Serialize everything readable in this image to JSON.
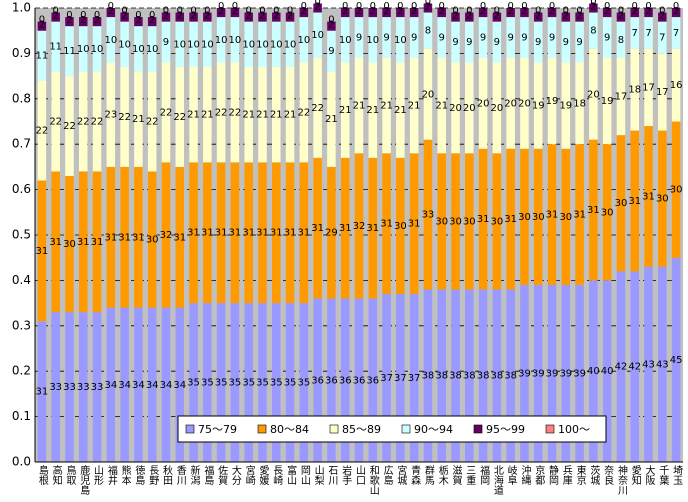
{
  "chart_data": {
    "type": "stacked_bar",
    "categories": [
      "島根",
      "高知",
      "鳥取",
      "鹿児島",
      "山形",
      "福井",
      "熊本",
      "徳島",
      "長野",
      "秋田",
      "香川",
      "新潟",
      "福島",
      "佐賀",
      "大分",
      "宮崎",
      "愛媛",
      "長崎",
      "富山",
      "岡山",
      "山梨",
      "石川",
      "岩手",
      "山口",
      "和歌山",
      "広島",
      "宮城",
      "青森",
      "群馬",
      "栃木",
      "滋賀",
      "三重",
      "福岡",
      "北海道",
      "岐阜",
      "沖縄",
      "京都",
      "静岡",
      "兵庫",
      "東京",
      "茨城",
      "奈良",
      "神奈川",
      "愛知",
      "大阪",
      "千葉",
      "埼玉"
    ],
    "ylim": [
      0,
      1.0
    ],
    "yticks": [
      {
        "value": 0,
        "label": "0.0"
      },
      0.1,
      0.2,
      0.3,
      0.4,
      0.5,
      0.6,
      0.7,
      0.8,
      0.9,
      {
        "value": 1.0,
        "label": "1.0"
      }
    ],
    "grid": true,
    "legend": "bottom",
    "series": [
      {
        "name": "75～79",
        "color": "#9999ff",
        "values": [
          0.31,
          0.33,
          0.33,
          0.33,
          0.33,
          0.34,
          0.34,
          0.34,
          0.34,
          0.34,
          0.34,
          0.35,
          0.35,
          0.35,
          0.35,
          0.35,
          0.35,
          0.35,
          0.35,
          0.35,
          0.36,
          0.36,
          0.36,
          0.36,
          0.36,
          0.37,
          0.37,
          0.37,
          0.38,
          0.38,
          0.38,
          0.38,
          0.38,
          0.38,
          0.38,
          0.39,
          0.39,
          0.39,
          0.39,
          0.39,
          0.4,
          0.4,
          0.42,
          0.42,
          0.43,
          0.43,
          0.45
        ],
        "value_labels": [
          "31",
          "33",
          "33",
          "33",
          "33",
          "34",
          "34",
          "34",
          "34",
          "34",
          "34",
          "35",
          "35",
          "35",
          "35",
          "35",
          "35",
          "35",
          "35",
          "35",
          "36",
          "36",
          "36",
          "36",
          "36",
          "37",
          "37",
          "37",
          "38",
          "38",
          "38",
          "38",
          "38",
          "38",
          "38",
          "39",
          "39",
          "39",
          "39",
          "39",
          "40",
          "40",
          "42",
          "42",
          "43",
          "43",
          "45"
        ]
      },
      {
        "name": "80～84",
        "color": "#ff9900",
        "values": [
          0.31,
          0.31,
          0.3,
          0.31,
          0.31,
          0.31,
          0.31,
          0.31,
          0.3,
          0.32,
          0.31,
          0.31,
          0.31,
          0.31,
          0.31,
          0.31,
          0.31,
          0.31,
          0.31,
          0.31,
          0.31,
          0.29,
          0.31,
          0.32,
          0.31,
          0.31,
          0.3,
          0.31,
          0.33,
          0.3,
          0.3,
          0.3,
          0.31,
          0.3,
          0.31,
          0.3,
          0.3,
          0.31,
          0.3,
          0.31,
          0.31,
          0.3,
          0.3,
          0.31,
          0.31,
          0.3,
          0.3
        ],
        "value_labels": [
          "31",
          "31",
          "30",
          "31",
          "31",
          "31",
          "31",
          "31",
          "30",
          "32",
          "31",
          "31",
          "31",
          "31",
          "31",
          "31",
          "31",
          "31",
          "31",
          "31",
          "31",
          "29",
          "31",
          "32",
          "31",
          "31",
          "30",
          "31",
          "33",
          "30",
          "30",
          "30",
          "31",
          "30",
          "31",
          "30",
          "30",
          "31",
          "30",
          "31",
          "31",
          "30",
          "30",
          "31",
          "31",
          "30",
          "30"
        ]
      },
      {
        "name": "85～89",
        "color": "#ffffcc",
        "values": [
          0.22,
          0.22,
          0.22,
          0.22,
          0.22,
          0.23,
          0.22,
          0.21,
          0.22,
          0.22,
          0.22,
          0.21,
          0.21,
          0.22,
          0.22,
          0.21,
          0.21,
          0.21,
          0.21,
          0.22,
          0.22,
          0.21,
          0.21,
          0.21,
          0.21,
          0.21,
          0.21,
          0.21,
          0.2,
          0.21,
          0.2,
          0.2,
          0.2,
          0.2,
          0.2,
          0.2,
          0.19,
          0.19,
          0.19,
          0.18,
          0.2,
          0.19,
          0.17,
          0.18,
          0.17,
          0.17,
          0.16
        ],
        "value_labels": [
          "22",
          "22",
          "22",
          "22",
          "22",
          "23",
          "22",
          "21",
          "22",
          "22",
          "22",
          "21",
          "21",
          "22",
          "22",
          "21",
          "21",
          "21",
          "21",
          "22",
          "22",
          "21",
          "21",
          "21",
          "21",
          "21",
          "21",
          "21",
          "20",
          "21",
          "20",
          "20",
          "20",
          "20",
          "20",
          "20",
          "19",
          "19",
          "19",
          "18",
          "20",
          "19",
          "17",
          "18",
          "17",
          "17",
          "16"
        ]
      },
      {
        "name": "90～94",
        "color": "#ccffff",
        "values": [
          0.11,
          0.11,
          0.11,
          0.1,
          0.1,
          0.1,
          0.1,
          0.1,
          0.1,
          0.09,
          0.1,
          0.1,
          0.1,
          0.1,
          0.1,
          0.1,
          0.1,
          0.1,
          0.1,
          0.1,
          0.1,
          0.09,
          0.1,
          0.09,
          0.1,
          0.09,
          0.1,
          0.09,
          0.08,
          0.09,
          0.09,
          0.09,
          0.09,
          0.09,
          0.09,
          0.09,
          0.09,
          0.09,
          0.09,
          0.09,
          0.08,
          0.09,
          0.08,
          0.07,
          0.07,
          0.07,
          0.07
        ],
        "value_labels": [
          "11",
          "11",
          "11",
          "10",
          "10",
          "10",
          "10",
          "10",
          "10",
          "9",
          "10",
          "10",
          "10",
          "10",
          "10",
          "10",
          "10",
          "10",
          "10",
          "10",
          "10",
          "9",
          "10",
          "9",
          "10",
          "9",
          "10",
          "9",
          "8",
          "9",
          "9",
          "9",
          "9",
          "9",
          "9",
          "9",
          "9",
          "9",
          "9",
          "9",
          "8",
          "9",
          "8",
          "7",
          "7",
          "7",
          "7"
        ]
      },
      {
        "name": "95～99",
        "color": "#660066",
        "values": [
          0.02,
          0.02,
          0.02,
          0.02,
          0.02,
          0.02,
          0.02,
          0.02,
          0.02,
          0.02,
          0.02,
          0.02,
          0.02,
          0.02,
          0.02,
          0.02,
          0.02,
          0.02,
          0.02,
          0.02,
          0.02,
          0.02,
          0.02,
          0.02,
          0.02,
          0.02,
          0.02,
          0.02,
          0.02,
          0.02,
          0.02,
          0.02,
          0.02,
          0.02,
          0.02,
          0.02,
          0.02,
          0.02,
          0.02,
          0.02,
          0.02,
          0.02,
          0.02,
          0.02,
          0.02,
          0.02,
          0.02
        ],
        "value_labels": [
          "2",
          "2",
          "2",
          "2",
          "2",
          "2",
          "2",
          "2",
          "2",
          "2",
          "2",
          "2",
          "2",
          "2",
          "2",
          "2",
          "2",
          "2",
          "2",
          "2",
          "2",
          "2",
          "2",
          "2",
          "2",
          "2",
          "2",
          "2",
          "2",
          "2",
          "2",
          "2",
          "2",
          "2",
          "2",
          "2",
          "2",
          "2",
          "2",
          "2",
          "2",
          "2",
          "2",
          "2",
          "2",
          "2",
          "2"
        ]
      },
      {
        "name": "100～",
        "color": "#ff8080",
        "values": [
          0,
          0,
          0,
          0,
          0,
          0,
          0,
          0,
          0,
          0,
          0,
          0,
          0,
          0,
          0,
          0,
          0,
          0,
          0,
          0,
          0,
          0,
          0,
          0,
          0,
          0,
          0,
          0,
          0,
          0,
          0,
          0,
          0,
          0,
          0,
          0,
          0,
          0,
          0,
          0,
          0,
          0,
          0,
          0,
          0,
          0,
          0
        ],
        "value_labels": [
          "0",
          "0",
          "0",
          "0",
          "0",
          "0",
          "0",
          "0",
          "0",
          "0",
          "0",
          "0",
          "0",
          "0",
          "0",
          "0",
          "0",
          "0",
          "0",
          "0",
          "0",
          "0",
          "0",
          "0",
          "0",
          "0",
          "0",
          "0",
          "0",
          "0",
          "0",
          "0",
          "0",
          "0",
          "0",
          "0",
          "0",
          "0",
          "0",
          "0",
          "0",
          "0",
          "0",
          "0",
          "0",
          "0",
          "0"
        ]
      }
    ]
  }
}
